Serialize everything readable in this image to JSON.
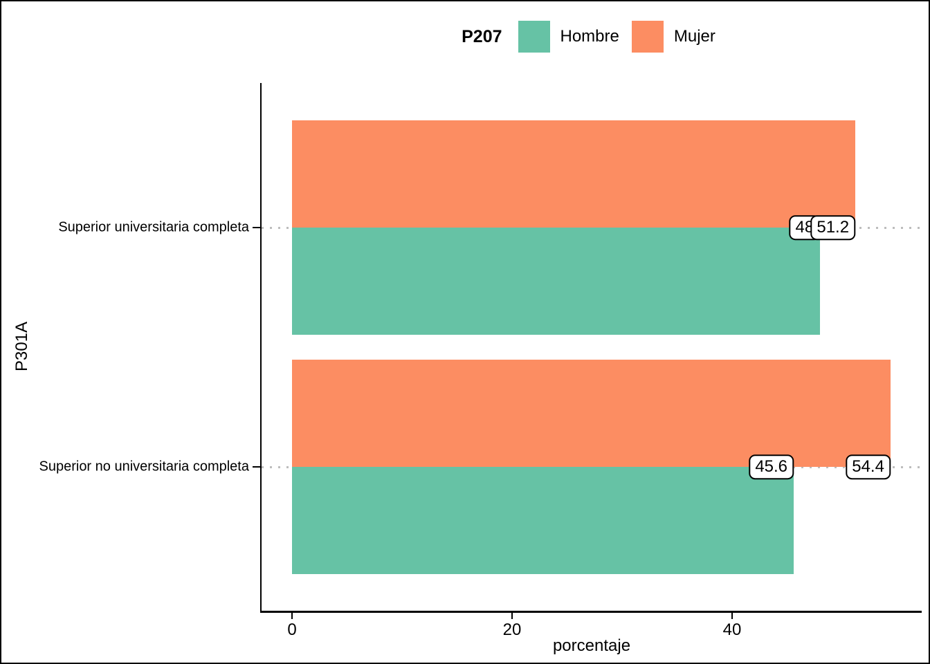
{
  "figure": {
    "background": "#ffffff",
    "border_color": "#000000"
  },
  "legend": {
    "title": "P207",
    "position": "top",
    "items": [
      {
        "label": "Hombre",
        "color": "#66C2A5"
      },
      {
        "label": "Mujer",
        "color": "#FC8D62"
      }
    ]
  },
  "chart_data": {
    "type": "bar",
    "orientation": "horizontal",
    "title": "",
    "xlabel": "porcentaje",
    "ylabel": "P301A",
    "categories": [
      "Superior universitaria completa",
      "Superior no universitaria completa"
    ],
    "series": [
      {
        "name": "Hombre",
        "color": "#66C2A5",
        "values": [
          48,
          45.6
        ],
        "value_labels": [
          "48",
          "45.6"
        ]
      },
      {
        "name": "Mujer",
        "color": "#FC8D62",
        "values": [
          51.2,
          54.4
        ],
        "value_labels": [
          "51.2",
          "54.4"
        ]
      }
    ],
    "x_ticks": [
      0,
      20,
      40
    ],
    "xlim": [
      0,
      57
    ],
    "grid": "horizontal-dotted-at-categories",
    "gridline_color": "#bdbdbd",
    "legend_position": "top",
    "value_label_style": "white-rounded-box-at-bar-end"
  }
}
